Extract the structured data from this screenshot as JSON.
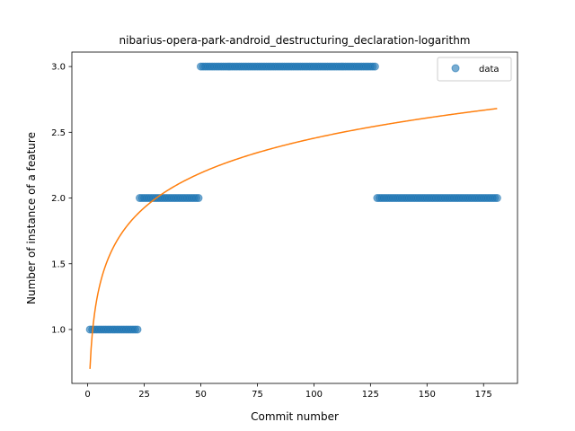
{
  "chart_data": {
    "type": "scatter",
    "title": "nibarius-opera-park-android_destructuring_declaration-logarithm",
    "xlabel": "Commit number",
    "ylabel": "Number of instance of a feature",
    "xlim": [
      -7,
      190
    ],
    "ylim": [
      0.59,
      3.11
    ],
    "x_ticks": [
      0,
      25,
      50,
      75,
      100,
      125,
      150,
      175
    ],
    "y_ticks": [
      1.0,
      1.5,
      2.0,
      2.5,
      3.0
    ],
    "x_tick_labels": [
      "0",
      "25",
      "50",
      "75",
      "100",
      "125",
      "150",
      "175"
    ],
    "y_tick_labels": [
      "1.0",
      "1.5",
      "2.0",
      "2.5",
      "3.0"
    ],
    "grid": false,
    "legend_position": "top-right",
    "series": [
      {
        "name": "data",
        "kind": "scatter",
        "color": "#1f77b4",
        "segments": [
          {
            "x_start": 1,
            "x_end": 22,
            "y": 1
          },
          {
            "x_start": 23,
            "x_end": 49,
            "y": 2
          },
          {
            "x_start": 50,
            "x_end": 127,
            "y": 3
          },
          {
            "x_start": 128,
            "x_end": 181,
            "y": 2
          }
        ]
      },
      {
        "kind": "line",
        "color": "#ff7f0e",
        "fit": {
          "model": "logarithmic",
          "a": 0.7,
          "b": 0.381
        },
        "x_range": [
          1,
          181
        ]
      }
    ]
  }
}
